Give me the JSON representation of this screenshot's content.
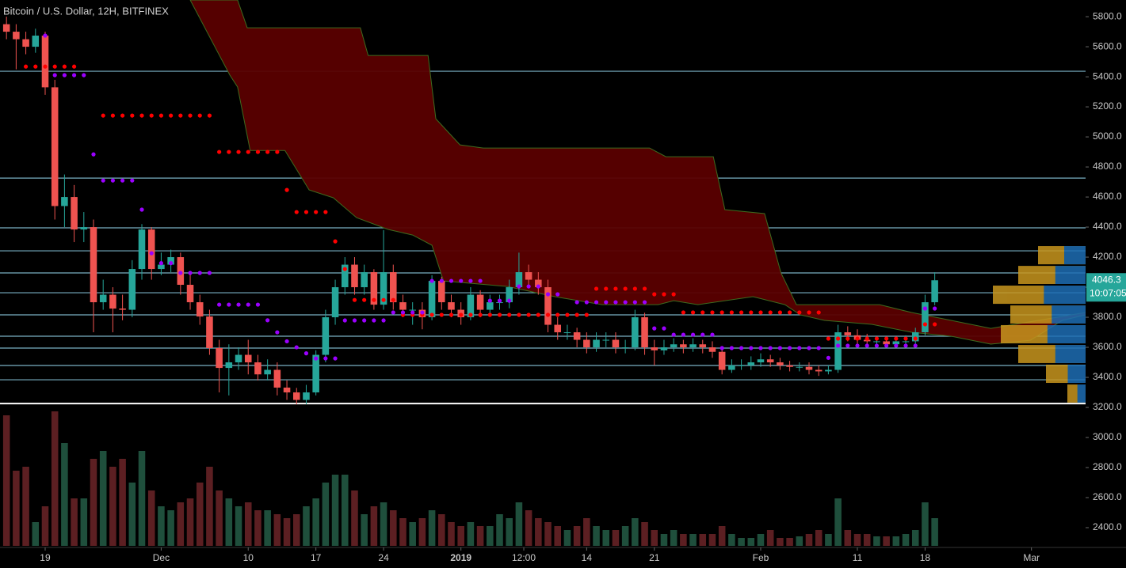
{
  "chart_data": {
    "type": "candlestick",
    "title": "Bitcoin / U.S. Dollar, 12H, BITFINEX",
    "xlim": [
      -4.67,
      107.6
    ],
    "ylim": [
      2279,
      5911
    ],
    "xticks": [
      {
        "value": 0,
        "label": "19"
      },
      {
        "value": 12,
        "label": "Dec"
      },
      {
        "value": 21,
        "label": "10"
      },
      {
        "value": 28,
        "label": "17"
      },
      {
        "value": 35,
        "label": "24"
      },
      {
        "value": 43,
        "label": "2019"
      },
      {
        "value": 49.5,
        "label": "12:00"
      },
      {
        "value": 56,
        "label": "14"
      },
      {
        "value": 63,
        "label": "21"
      },
      {
        "value": 74,
        "label": "Feb"
      },
      {
        "value": 84,
        "label": "11"
      },
      {
        "value": 91,
        "label": "18"
      },
      {
        "value": 102,
        "label": "Mar"
      }
    ],
    "yticks": [
      {
        "value": 5800,
        "label": "5800.0"
      },
      {
        "value": 5600,
        "label": "5600.0"
      },
      {
        "value": 5400,
        "label": "5400.0"
      },
      {
        "value": 5200,
        "label": "5200.0"
      },
      {
        "value": 5000,
        "label": "5000.0"
      },
      {
        "value": 4800,
        "label": "4800.0"
      },
      {
        "value": 4600,
        "label": "4600.0"
      },
      {
        "value": 4400,
        "label": "4400.0"
      },
      {
        "value": 4200,
        "label": "4200.0"
      },
      {
        "value": 4000,
        "label": "4000.0"
      },
      {
        "value": 3800,
        "label": "3800.0"
      },
      {
        "value": 3600,
        "label": "3600.0"
      },
      {
        "value": 3400,
        "label": "3400.0"
      },
      {
        "value": 3200,
        "label": "3200.0"
      },
      {
        "value": 3000,
        "label": "3000.0"
      },
      {
        "value": 2800,
        "label": "2800.0"
      },
      {
        "value": 2600,
        "label": "2600.0"
      },
      {
        "value": 2400,
        "label": "2400.0"
      }
    ],
    "up_color": "#26a69a",
    "down_color": "#ef5350",
    "volume_up_color": "#1f4f3c",
    "volume_down_color": "#5c1f22",
    "vlim": [
      0,
      200
    ],
    "candles": {
      "x": [
        -4,
        -3,
        -2,
        -1,
        0,
        1,
        2,
        3,
        4,
        5,
        6,
        7,
        8,
        9,
        10,
        11,
        12,
        13,
        14,
        15,
        16,
        17,
        18,
        19,
        20,
        21,
        22,
        23,
        24,
        25,
        26,
        27,
        28,
        29,
        30,
        31,
        32,
        33,
        34,
        35,
        36,
        37,
        38,
        39,
        40,
        41,
        42,
        43,
        44,
        45,
        46,
        47,
        48,
        49,
        50,
        51,
        52,
        53,
        54,
        55,
        56,
        57,
        58,
        59,
        60,
        61,
        62,
        63,
        64,
        65,
        66,
        67,
        68,
        69,
        70,
        71,
        72,
        73,
        74,
        75,
        76,
        77,
        78,
        79,
        80,
        81,
        82,
        83,
        84,
        85,
        86,
        87,
        88,
        89,
        90,
        91,
        92
      ],
      "open": [
        5750,
        5700,
        5650,
        5600,
        5674,
        5330,
        4540,
        4600,
        4384,
        4400,
        3900,
        3950,
        3858,
        3850,
        4121,
        4384,
        4121,
        4150,
        4200,
        4016,
        3900,
        3805,
        3595,
        3463,
        3500,
        3550,
        3500,
        3420,
        3450,
        3332,
        3300,
        3250,
        3300,
        3550,
        3800,
        4000,
        4150,
        4000,
        4100,
        3884,
        4100,
        3900,
        3850,
        3850,
        3800,
        4042,
        3900,
        3850,
        3800,
        3950,
        3850,
        3900,
        3900,
        4000,
        4100,
        4050,
        4000,
        3750,
        3700,
        3700,
        3650,
        3600,
        3650,
        3650,
        3600,
        3600,
        3800,
        3600,
        3580,
        3600,
        3620,
        3600,
        3620,
        3600,
        3570,
        3450,
        3480,
        3480,
        3500,
        3520,
        3500,
        3480,
        3470,
        3470,
        3450,
        3440,
        3450,
        3700,
        3680,
        3650,
        3640,
        3640,
        3620,
        3640,
        3640,
        3700,
        3900
      ],
      "high": [
        5800,
        5750,
        5700,
        5720,
        5700,
        5380,
        4750,
        4680,
        4500,
        4450,
        4050,
        4000,
        3950,
        4180,
        4420,
        4400,
        4230,
        4250,
        4230,
        4100,
        3950,
        3850,
        3650,
        3620,
        3600,
        3650,
        3550,
        3520,
        3500,
        3380,
        3330,
        3350,
        3580,
        3850,
        4050,
        4200,
        4200,
        4150,
        4120,
        4380,
        4150,
        3950,
        3900,
        3900,
        4080,
        4070,
        3950,
        3900,
        4000,
        3980,
        3950,
        3950,
        4050,
        4230,
        4150,
        4100,
        4050,
        3800,
        3750,
        3730,
        3700,
        3700,
        3700,
        3700,
        3650,
        3850,
        3830,
        3650,
        3650,
        3660,
        3650,
        3660,
        3650,
        3640,
        3600,
        3520,
        3520,
        3540,
        3560,
        3550,
        3530,
        3510,
        3500,
        3500,
        3480,
        3480,
        3750,
        3740,
        3720,
        3690,
        3670,
        3670,
        3670,
        3680,
        3730,
        3950,
        4100
      ],
      "low": [
        5650,
        5450,
        5550,
        5560,
        5280,
        4450,
        4400,
        4300,
        4300,
        3700,
        3850,
        3700,
        3780,
        3800,
        4050,
        4050,
        4080,
        4100,
        3950,
        3850,
        3750,
        3550,
        3300,
        3280,
        3450,
        3420,
        3380,
        3380,
        3280,
        3250,
        3220,
        3220,
        3280,
        3500,
        3750,
        3950,
        3950,
        3950,
        3850,
        3850,
        3850,
        3800,
        3750,
        3720,
        3780,
        3850,
        3800,
        3750,
        3780,
        3800,
        3820,
        3850,
        3860,
        3950,
        4000,
        3950,
        3700,
        3650,
        3650,
        3600,
        3560,
        3570,
        3600,
        3560,
        3560,
        3580,
        3550,
        3480,
        3550,
        3570,
        3560,
        3570,
        3560,
        3530,
        3420,
        3430,
        3450,
        3450,
        3470,
        3470,
        3450,
        3440,
        3440,
        3420,
        3410,
        3420,
        3430,
        3640,
        3620,
        3610,
        3610,
        3600,
        3600,
        3610,
        3620,
        3680,
        3880
      ],
      "close": [
        5700,
        5650,
        5600,
        5674,
        5330,
        4540,
        4600,
        4384,
        4400,
        3900,
        3950,
        3858,
        3850,
        4121,
        4384,
        4121,
        4150,
        4200,
        4016,
        3900,
        3805,
        3595,
        3463,
        3500,
        3550,
        3500,
        3420,
        3450,
        3332,
        3300,
        3250,
        3300,
        3550,
        3800,
        4000,
        4150,
        4000,
        4100,
        3884,
        4100,
        3900,
        3850,
        3850,
        3800,
        4042,
        3900,
        3850,
        3800,
        3950,
        3850,
        3900,
        3900,
        4000,
        4100,
        4050,
        4000,
        3750,
        3700,
        3700,
        3650,
        3600,
        3650,
        3650,
        3600,
        3600,
        3800,
        3600,
        3580,
        3600,
        3620,
        3600,
        3620,
        3600,
        3570,
        3450,
        3480,
        3480,
        3500,
        3520,
        3500,
        3480,
        3470,
        3470,
        3450,
        3440,
        3450,
        3700,
        3680,
        3650,
        3640,
        3640,
        3620,
        3640,
        3640,
        3700,
        3900,
        4046.3
      ],
      "volume": [
        165,
        95,
        100,
        30,
        50,
        170,
        130,
        60,
        60,
        110,
        120,
        100,
        110,
        80,
        120,
        70,
        50,
        45,
        55,
        60,
        80,
        100,
        70,
        60,
        50,
        55,
        45,
        45,
        40,
        35,
        40,
        50,
        60,
        80,
        90,
        90,
        70,
        40,
        50,
        55,
        45,
        35,
        30,
        35,
        45,
        40,
        30,
        25,
        30,
        25,
        25,
        40,
        35,
        55,
        45,
        35,
        30,
        25,
        20,
        25,
        35,
        25,
        20,
        20,
        25,
        35,
        30,
        20,
        15,
        20,
        15,
        15,
        15,
        15,
        25,
        15,
        10,
        10,
        15,
        20,
        10,
        10,
        12,
        15,
        20,
        15,
        60,
        20,
        15,
        15,
        12,
        12,
        12,
        15,
        20,
        55,
        35
      ]
    },
    "cloud": {
      "color": "#5a0000",
      "edge_color": "#3d6b1f",
      "upper_x": [
        15,
        19.9,
        20.9,
        32.6,
        33.4,
        39.6,
        40.4,
        42.9,
        45.3,
        62.5,
        64.2,
        69.1,
        70.3,
        74.4,
        76.1,
        77.7,
        86.3,
        89.6,
        93.7,
        97.8,
        107.6
      ],
      "upper_y": [
        5911,
        5911,
        5726,
        5726,
        5542,
        5542,
        5121,
        4947,
        4926,
        4926,
        4868,
        4868,
        4516,
        4490,
        4095,
        3884,
        3884,
        3832,
        3779,
        3726,
        3832
      ],
      "lower_x": [
        15,
        19.1,
        19.9,
        21.2,
        24.8,
        27.3,
        29.8,
        32.2,
        35.5,
        38,
        40,
        41.2,
        47.8,
        52.7,
        57.6,
        63.4,
        65,
        67.5,
        73.2,
        76.5,
        78.1,
        80.6,
        85.5,
        89.6,
        93.7,
        97.8,
        101.9,
        105.2,
        107.6
      ],
      "lower_y": [
        5911,
        5411,
        5332,
        4910,
        4910,
        4647,
        4595,
        4463,
        4384,
        4347,
        4279,
        4042,
        4005,
        3937,
        3884,
        3884,
        3910,
        3884,
        3937,
        3884,
        3816,
        3779,
        3753,
        3700,
        3674,
        3621,
        3647,
        3779,
        3816
      ]
    },
    "sar": [
      {
        "color": "#ff0000",
        "x": [
          -2,
          -1,
          0,
          1,
          2,
          3,
          6,
          7,
          8,
          9,
          10,
          11,
          12,
          13,
          14,
          15,
          16,
          17,
          18,
          19,
          20,
          21,
          22,
          23,
          24,
          25,
          26,
          27,
          28,
          29,
          30,
          31,
          32,
          33,
          34,
          35,
          36,
          37,
          38,
          39,
          40,
          41,
          42,
          43,
          44,
          45,
          46,
          47,
          48,
          49,
          50,
          51,
          52,
          53,
          54,
          55,
          56,
          57,
          58,
          59,
          60,
          61,
          62,
          63,
          64,
          65,
          66,
          67,
          68,
          69,
          70,
          71,
          72,
          73,
          74,
          75,
          76,
          77,
          78,
          79,
          80,
          81,
          82,
          83,
          84,
          85,
          86,
          87,
          88,
          89,
          90,
          91,
          92
        ],
        "y": [
          5468,
          5468,
          5468,
          5468,
          5468,
          5468,
          5142,
          5142,
          5142,
          5142,
          5142,
          5142,
          5142,
          5142,
          5142,
          5142,
          5142,
          5142,
          4900,
          4900,
          4900,
          4900,
          4900,
          4900,
          4900,
          4647,
          4500,
          4500,
          4500,
          4500,
          4305,
          4121,
          3915,
          3915,
          3915,
          3915,
          3915,
          3816,
          3816,
          3816,
          3816,
          3816,
          3816,
          3816,
          3816,
          3816,
          3816,
          3816,
          3816,
          3816,
          3816,
          3816,
          3816,
          3816,
          3816,
          3816,
          3816,
          3990,
          3990,
          3990,
          3990,
          3990,
          3990,
          3953,
          3953,
          3953,
          3832,
          3832,
          3832,
          3832,
          3832,
          3832,
          3832,
          3832,
          3832,
          3832,
          3832,
          3832,
          3832,
          3832,
          3832,
          3658,
          3658,
          3658,
          3658,
          3658,
          3658,
          3658,
          3658,
          3658,
          3658,
          3753,
          3753
        ]
      },
      {
        "color": "#9b00ff",
        "x": [
          0,
          1,
          2,
          3,
          4,
          5,
          6,
          7,
          8,
          9,
          10,
          11,
          12,
          13,
          14,
          15,
          16,
          17,
          18,
          19,
          20,
          21,
          22,
          23,
          24,
          25,
          26,
          27,
          28,
          29,
          30,
          31,
          32,
          33,
          34,
          35,
          36,
          37,
          38,
          39,
          40,
          41,
          42,
          43,
          44,
          45,
          46,
          47,
          48,
          49,
          50,
          51,
          52,
          53,
          55,
          56,
          57,
          58,
          59,
          60,
          61,
          62,
          63,
          64,
          65,
          66,
          67,
          68,
          69,
          70,
          71,
          72,
          73,
          74,
          75,
          76,
          77,
          78,
          79,
          80,
          81,
          82,
          83,
          84,
          85,
          86,
          87,
          88,
          89,
          90,
          91,
          92
        ],
        "y": [
          5674,
          5411,
          5411,
          5411,
          5411,
          4884,
          4710,
          4710,
          4710,
          4710,
          4516,
          4226,
          4160,
          4160,
          4095,
          4095,
          4095,
          4095,
          3884,
          3884,
          3884,
          3884,
          3884,
          3780,
          3700,
          3640,
          3600,
          3560,
          3526,
          3526,
          3526,
          3779,
          3779,
          3779,
          3779,
          3779,
          3832,
          3832,
          3832,
          3832,
          4042,
          4042,
          4042,
          4042,
          4042,
          4042,
          3910,
          3910,
          3910,
          4005,
          4005,
          4005,
          3953,
          3953,
          3900,
          3900,
          3900,
          3900,
          3900,
          3900,
          3900,
          3900,
          3726,
          3726,
          3684,
          3684,
          3684,
          3684,
          3684,
          3595,
          3595,
          3595,
          3595,
          3595,
          3595,
          3595,
          3595,
          3595,
          3595,
          3595,
          3530,
          3611,
          3611,
          3611,
          3611,
          3611,
          3611,
          3611,
          3611,
          3611,
          3858,
          3858
        ]
      }
    ],
    "levels": [
      5437,
      4726,
      4395,
      4242,
      4095,
      3963,
      3816,
      3674,
      3595,
      3479,
      3384
    ],
    "level_color": "#8fd0e6",
    "support_line": 3226,
    "support_color": "#ffffff",
    "volume_profile": {
      "bins": [
        3227,
        3358,
        3490,
        3621,
        3753,
        3884,
        4016,
        4147,
        4279
      ],
      "values": [
        23,
        50,
        85,
        107,
        95,
        117,
        85,
        60
      ],
      "xlim": [
        0,
        140
      ],
      "colors": [
        "#c8961e",
        "#1e6eb4"
      ]
    },
    "last_price": 4046.3,
    "countdown": "10:07:05"
  }
}
